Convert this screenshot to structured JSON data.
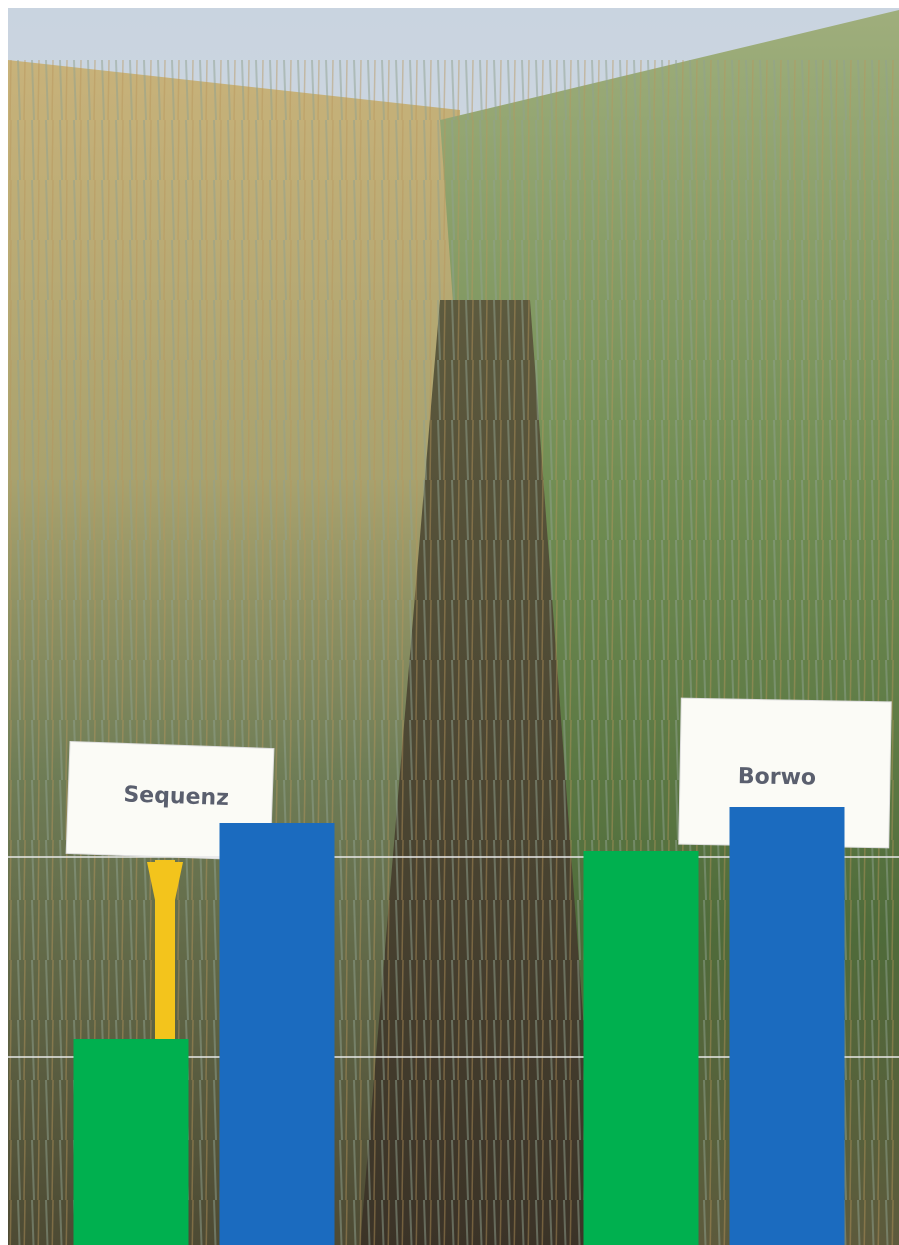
{
  "chart_data": {
    "type": "bar",
    "categories": [
      "Sequenz",
      "Borwo"
    ],
    "series": [
      {
        "color": "#00b04f",
        "values": [
          1.03,
          1.97
        ]
      },
      {
        "color": "#1b6bbf",
        "values": [
          2.11,
          2.19
        ]
      }
    ],
    "ylim": [
      0,
      6.2
    ],
    "yticks": [
      0.94,
      1.94
    ],
    "grid": true,
    "grid_color": "#e8e8e8"
  }
}
